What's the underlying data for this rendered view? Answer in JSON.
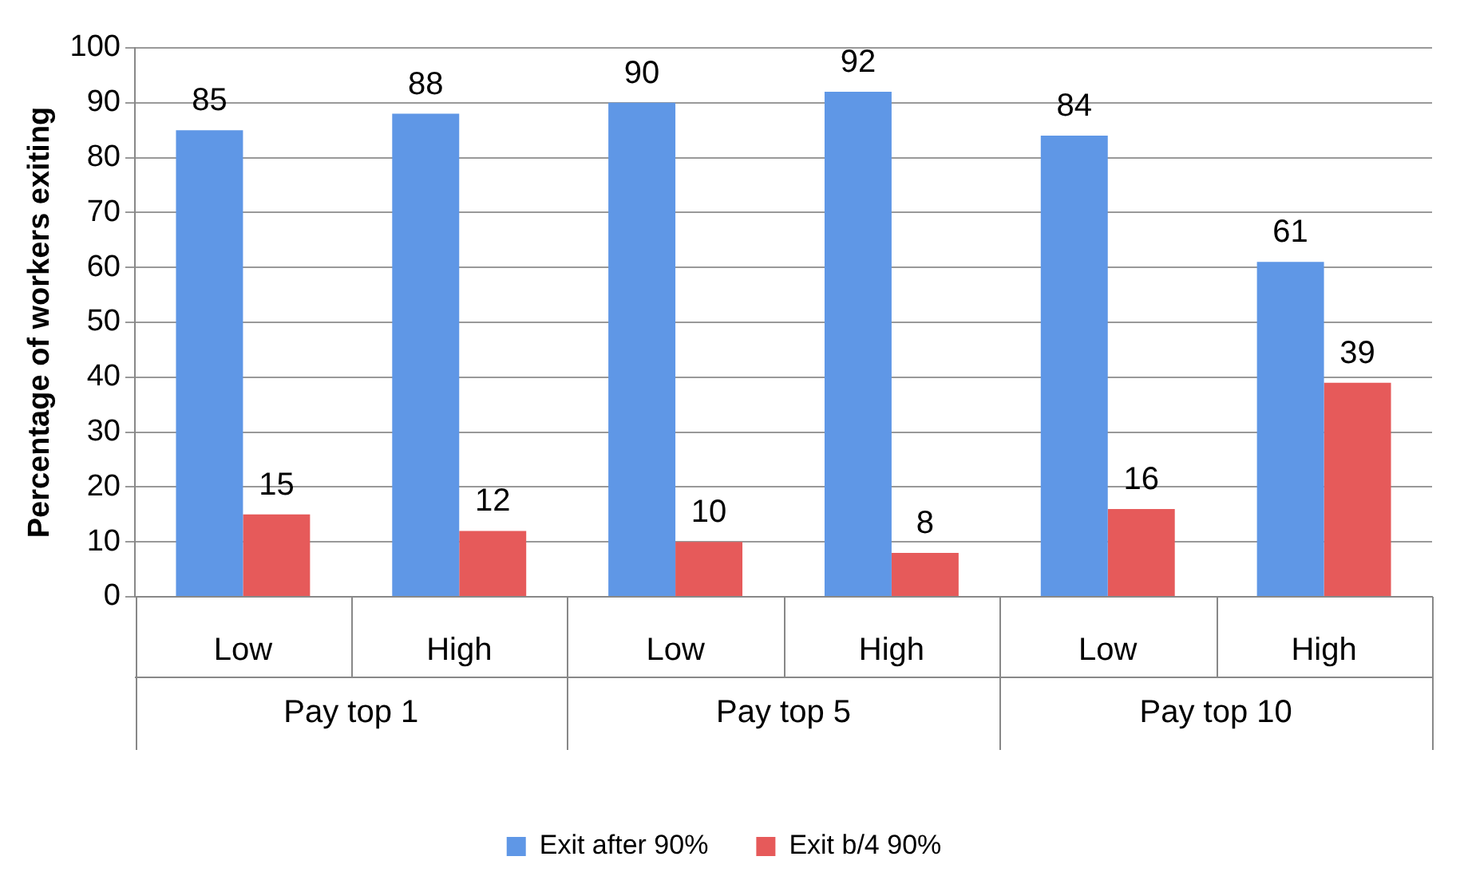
{
  "chart_data": {
    "type": "bar",
    "ylabel": "Percentage of workers exiting",
    "categories": [
      "Low",
      "High",
      "Low",
      "High",
      "Low",
      "High"
    ],
    "annotations": [
      "Pay top 1",
      "Pay top 5",
      "Pay top 10"
    ],
    "series": [
      {
        "name": "Exit after 90%",
        "color": "#5f97e6",
        "values": [
          85,
          88,
          90,
          92,
          84,
          61
        ]
      },
      {
        "name": "Exit b/4 90%",
        "color": "#e65a5a",
        "values": [
          15,
          12,
          10,
          8,
          16,
          39
        ]
      }
    ],
    "ylim": [
      0,
      100
    ],
    "yticks": [
      0,
      10,
      20,
      30,
      40,
      50,
      60,
      70,
      80,
      90,
      100
    ],
    "grid": "y",
    "legend": "bottom",
    "data_labels": true
  }
}
